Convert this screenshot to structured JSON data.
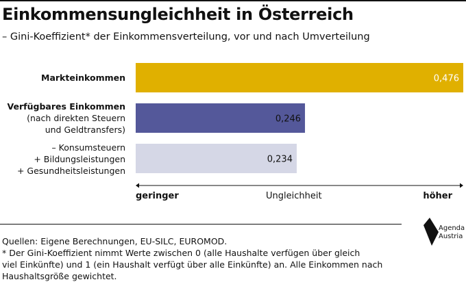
{
  "title": "Einkommensungleichheit in Österreich",
  "subtitle": "– Gini-Koeffizient* der Einkommensverteilung, vor und nach Umverteilung",
  "chart_data": {
    "type": "bar",
    "orientation": "horizontal",
    "categories": [
      [
        "Markteinkommen"
      ],
      [
        "Verfügbares Einkommen",
        "(nach direkten Steuern",
        "und Geldtransfers)"
      ],
      [
        "– Konsumsteuern",
        "+ Bildungsleistungen",
        "+ Gesundheitsleistungen"
      ]
    ],
    "values": [
      0.476,
      0.246,
      0.234
    ],
    "value_labels": [
      "0,476",
      "0,246",
      "0,234"
    ],
    "colors": [
      "#e0b000",
      "#54589a",
      "#d5d7e6"
    ],
    "label_colors": [
      "#ffffff",
      "#111111",
      "#111111"
    ],
    "xlim": [
      0,
      0.476
    ],
    "axis_labels": {
      "low": "geringer",
      "mid": "Ungleichheit",
      "high": "höher"
    }
  },
  "notes": [
    "Quellen: Eigene Berechnungen, EU-SILC, EUROMOD.",
    "* Der Gini-Koeffizient nimmt Werte zwischen 0 (alle Haushalte verfügen über gleich",
    "viel Einkünfte) und 1 (ein Haushalt verfügt über alle Einkünfte) an. Alle Einkommen nach",
    "Haushaltsgröße gewichtet."
  ],
  "logo": {
    "line1": "Agenda",
    "line2": "Austria",
    "color": "#111111"
  }
}
